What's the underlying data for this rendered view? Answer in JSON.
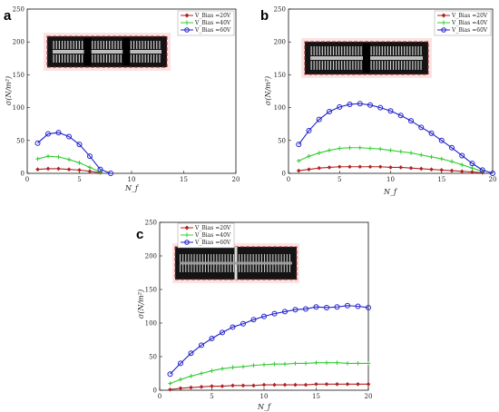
{
  "panels": [
    {
      "letter": "a",
      "xlabel": "N_f",
      "ylabel": "σ(N/m²)",
      "xlim": [
        0,
        20
      ],
      "ylim": [
        0,
        250
      ],
      "xticks": [
        "0",
        "5",
        "10",
        "15",
        "20"
      ],
      "yticks": [
        "0",
        "50",
        "100",
        "150",
        "200",
        "250"
      ],
      "legend": [
        "V_Bias =20V",
        "V_Bias =40V",
        "V_Bias =60V"
      ]
    },
    {
      "letter": "b",
      "xlabel": "N_f",
      "ylabel": "σ(N/m²)",
      "xlim": [
        0,
        20
      ],
      "ylim": [
        0,
        250
      ],
      "xticks": [
        "0",
        "5",
        "10",
        "15",
        "20"
      ],
      "yticks": [
        "0",
        "50",
        "100",
        "150",
        "200",
        "250"
      ],
      "legend": [
        "V_Bias =20V",
        "V_Bias =40V",
        "V_Bias =60V"
      ]
    },
    {
      "letter": "c",
      "xlabel": "N_f",
      "ylabel": "σ(N/m²)",
      "xlim": [
        0,
        20
      ],
      "ylim": [
        0,
        250
      ],
      "xticks": [
        "0",
        "5",
        "10",
        "15",
        "20"
      ],
      "yticks": [
        "0",
        "50",
        "100",
        "150",
        "200",
        "250"
      ],
      "legend": [
        "V_Bias =20V",
        "V_Bias =40V",
        "V_Bias =60V"
      ]
    }
  ],
  "colors": {
    "v20": "#b22222",
    "v40": "#33cc33",
    "v60": "#1f1fcc"
  },
  "chart_data": [
    {
      "type": "line",
      "panel": "a",
      "xlabel": "N_f",
      "ylabel": "σ(N/m²)",
      "xlim": [
        0,
        20
      ],
      "ylim": [
        0,
        250
      ],
      "legend_position": "top-right",
      "series": [
        {
          "name": "V_Bias =20V",
          "x": [
            1,
            2,
            3,
            4,
            5,
            6,
            7
          ],
          "values": [
            6,
            7,
            7,
            6,
            5,
            3,
            1
          ]
        },
        {
          "name": "V_Bias =40V",
          "x": [
            1,
            2,
            3,
            4,
            5,
            6,
            7
          ],
          "values": [
            22,
            26,
            25,
            21,
            16,
            9,
            2
          ]
        },
        {
          "name": "V_Bias =60V",
          "x": [
            1,
            2,
            3,
            4,
            5,
            6,
            7,
            8
          ],
          "values": [
            46,
            60,
            62,
            56,
            44,
            26,
            6,
            0
          ]
        }
      ]
    },
    {
      "type": "line",
      "panel": "b",
      "xlabel": "N_f",
      "ylabel": "σ(N/m²)",
      "xlim": [
        0,
        20
      ],
      "ylim": [
        0,
        250
      ],
      "legend_position": "top-right",
      "series": [
        {
          "name": "V_Bias =20V",
          "x": [
            1,
            2,
            3,
            4,
            5,
            6,
            7,
            8,
            9,
            10,
            11,
            12,
            13,
            14,
            15,
            16,
            17,
            18,
            19
          ],
          "values": [
            4,
            6,
            8,
            9,
            10,
            10,
            10,
            10,
            10,
            9,
            9,
            8,
            7,
            6,
            5,
            4,
            3,
            2,
            1
          ]
        },
        {
          "name": "V_Bias =40V",
          "x": [
            1,
            2,
            3,
            4,
            5,
            6,
            7,
            8,
            9,
            10,
            11,
            12,
            13,
            14,
            15,
            16,
            17,
            18,
            19
          ],
          "values": [
            19,
            26,
            31,
            35,
            38,
            39,
            39,
            38,
            37,
            35,
            33,
            31,
            28,
            25,
            22,
            18,
            13,
            8,
            3
          ]
        },
        {
          "name": "V_Bias =60V",
          "x": [
            1,
            2,
            3,
            4,
            5,
            6,
            7,
            8,
            9,
            10,
            11,
            12,
            13,
            14,
            15,
            16,
            17,
            18,
            19,
            20
          ],
          "values": [
            44,
            65,
            82,
            94,
            101,
            105,
            106,
            104,
            100,
            95,
            88,
            80,
            70,
            61,
            50,
            39,
            27,
            15,
            5,
            0
          ]
        }
      ]
    },
    {
      "type": "line",
      "panel": "c",
      "xlabel": "N_f",
      "ylabel": "σ(N/m²)",
      "xlim": [
        0,
        20
      ],
      "ylim": [
        0,
        250
      ],
      "legend_position": "top-left",
      "series": [
        {
          "name": "V_Bias =20V",
          "x": [
            1,
            2,
            3,
            4,
            5,
            6,
            7,
            8,
            9,
            10,
            11,
            12,
            13,
            14,
            15,
            16,
            17,
            18,
            19,
            20
          ],
          "values": [
            1,
            3,
            4,
            5,
            6,
            6,
            7,
            7,
            7,
            8,
            8,
            8,
            8,
            8,
            9,
            9,
            9,
            9,
            9,
            9
          ]
        },
        {
          "name": "V_Bias =40V",
          "x": [
            1,
            2,
            3,
            4,
            5,
            6,
            7,
            8,
            9,
            10,
            11,
            12,
            13,
            14,
            15,
            16,
            17,
            18,
            19,
            20
          ],
          "values": [
            10,
            16,
            21,
            25,
            29,
            32,
            34,
            35,
            37,
            38,
            39,
            39,
            40,
            40,
            41,
            41,
            41,
            40,
            40,
            40
          ]
        },
        {
          "name": "V_Bias =60V",
          "x": [
            1,
            2,
            3,
            4,
            5,
            6,
            7,
            8,
            9,
            10,
            11,
            12,
            13,
            14,
            15,
            16,
            17,
            18,
            19,
            20
          ],
          "values": [
            24,
            40,
            55,
            67,
            77,
            86,
            94,
            99,
            105,
            110,
            114,
            117,
            120,
            121,
            124,
            123,
            124,
            126,
            125,
            123
          ]
        }
      ]
    }
  ]
}
